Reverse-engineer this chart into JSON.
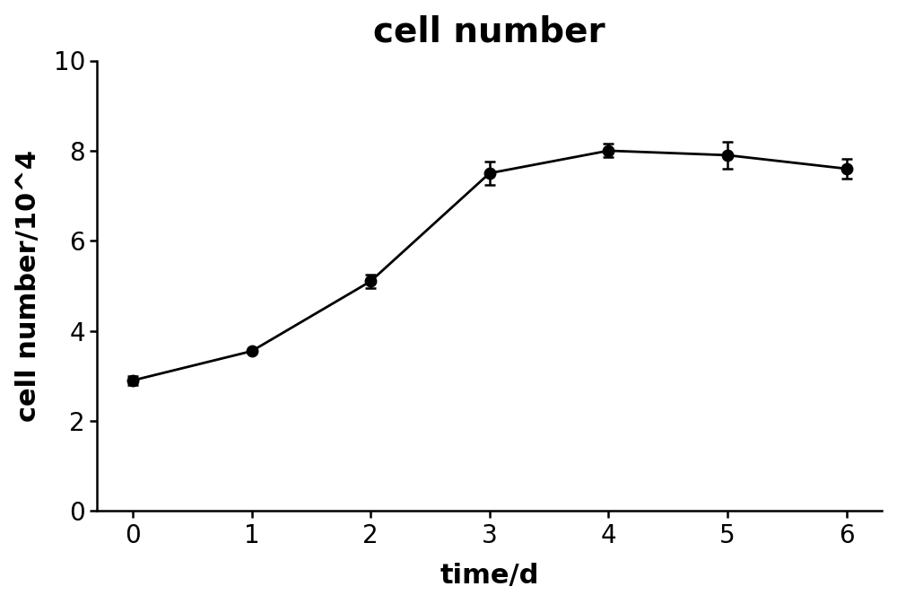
{
  "title": "cell number",
  "xlabel": "time/d",
  "ylabel": "cell number/10^4",
  "x": [
    0,
    1,
    2,
    3,
    4,
    5,
    6
  ],
  "y": [
    2.9,
    3.55,
    5.1,
    7.5,
    8.0,
    7.9,
    7.6
  ],
  "yerr": [
    0.1,
    0.0,
    0.15,
    0.25,
    0.15,
    0.3,
    0.22
  ],
  "ylim": [
    0,
    10
  ],
  "yticks": [
    0,
    2,
    4,
    6,
    8,
    10
  ],
  "xticks": [
    0,
    1,
    2,
    3,
    4,
    5,
    6
  ],
  "line_color": "#000000",
  "marker_color": "#000000",
  "marker": "o",
  "markersize": 9,
  "linewidth": 2.0,
  "capsize": 4,
  "title_fontsize": 28,
  "label_fontsize": 22,
  "tick_fontsize": 20,
  "background_color": "#ffffff",
  "elinewidth": 1.8,
  "spine_linewidth": 1.8,
  "figsize": [
    10.0,
    6.73
  ],
  "dpi": 100
}
